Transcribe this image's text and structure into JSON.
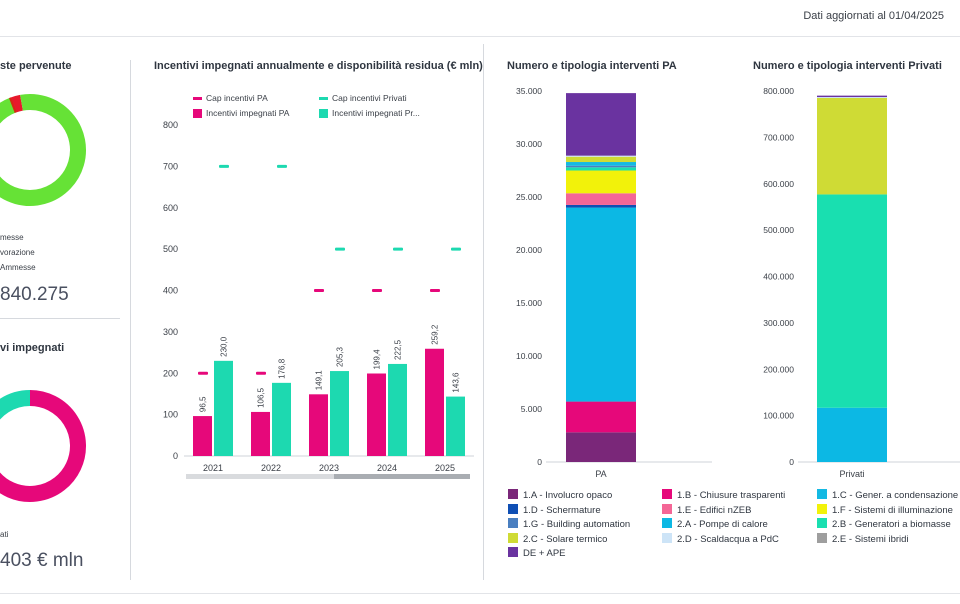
{
  "header": {
    "updated": "Dati aggiornati al 01/04/2025"
  },
  "left_top": {
    "title": "ste pervenute",
    "legend": [
      "messe",
      "vorazione",
      "Ammesse"
    ],
    "total": "840.275",
    "donut": {
      "values": [
        0.03,
        0.97
      ],
      "colors": [
        "#e8192c",
        "#66e236"
      ],
      "accent": "#d42a12"
    }
  },
  "left_bottom": {
    "title": "vi impegnati",
    "legend": [
      "ati"
    ],
    "total": "403 € mln",
    "donut": {
      "values": [
        0.64,
        0.36
      ],
      "colors": [
        "#e6087a",
        "#1dd9b0"
      ]
    }
  },
  "chart_data": [
    {
      "type": "bar",
      "title": "Incentivi impegnati annualmente e disponibilità residua (€ mln)",
      "categories": [
        "2021",
        "2022",
        "2023",
        "2024",
        "2025"
      ],
      "ylim": [
        0,
        800
      ],
      "yticks": [
        0,
        100,
        200,
        300,
        400,
        500,
        600,
        700,
        800
      ],
      "legend_position": "top",
      "series": [
        {
          "name": "Incentivi impegnati PA",
          "kind": "bar",
          "color": "#e6087a",
          "values": [
            96.5,
            106.5,
            149.1,
            199.4,
            259.2
          ],
          "labels": [
            "96,5",
            "106,5",
            "149,1",
            "199,4",
            "259,2"
          ]
        },
        {
          "name": "Incentivi impegnati Pr...",
          "kind": "bar",
          "color": "#1dd9b0",
          "values": [
            230.0,
            176.8,
            205.3,
            222.5,
            143.6
          ],
          "labels": [
            "230,0",
            "176,8",
            "205,3",
            "222,5",
            "143,6"
          ]
        },
        {
          "name": "Cap incentivi PA",
          "kind": "marker",
          "color": "#e6087a",
          "values": [
            200,
            200,
            400,
            400,
            400
          ]
        },
        {
          "name": "Cap incentivi Privati",
          "kind": "marker",
          "color": "#1dd9b0",
          "values": [
            700,
            700,
            500,
            500,
            500
          ]
        }
      ]
    },
    {
      "type": "bar",
      "stacked": true,
      "title": "Numero e tipologia interventi PA",
      "categories": [
        "PA"
      ],
      "ylim": [
        0,
        35000
      ],
      "yticks": [
        0,
        5000,
        10000,
        15000,
        20000,
        25000,
        30000,
        35000
      ],
      "ytick_labels": [
        "0",
        "5.000",
        "10.000",
        "15.000",
        "20.000",
        "25.000",
        "30.000",
        "35.000"
      ],
      "series": [
        {
          "name": "1.A - Involucro opaco",
          "value": 2800
        },
        {
          "name": "1.B - Chiusure trasparenti",
          "value": 2900
        },
        {
          "name": "2.A - Pompe di calore",
          "value": 18300
        },
        {
          "name": "1.D - Schermature",
          "value": 250
        },
        {
          "name": "1.E - Edifici nZEB",
          "value": 1100
        },
        {
          "name": "1.F - Sistemi di illuminazione",
          "value": 2150
        },
        {
          "name": "2.B - Generatori a biomasse",
          "value": 300
        },
        {
          "name": "1.G - Building automation",
          "value": 150
        },
        {
          "name": "1.C - Gener. a condensazione",
          "value": 350
        },
        {
          "name": "2.C - Solare termico",
          "value": 500
        },
        {
          "name": "2.D - Scaldacqua a PdC",
          "value": 100
        },
        {
          "name": "DE + APE",
          "value": 5900
        }
      ]
    },
    {
      "type": "bar",
      "stacked": true,
      "title": "Numero e tipologia interventi Privati",
      "categories": [
        "Privati"
      ],
      "ylim": [
        0,
        800000
      ],
      "yticks": [
        0,
        100000,
        200000,
        300000,
        400000,
        500000,
        600000,
        700000,
        800000
      ],
      "ytick_labels": [
        "0",
        "100.000",
        "200.000",
        "300.000",
        "400.000",
        "500.000",
        "600.000",
        "700.000",
        "800.000"
      ],
      "series": [
        {
          "name": "2.A - Pompe di calore",
          "value": 117000
        },
        {
          "name": "2.B - Generatori a biomasse",
          "value": 460000
        },
        {
          "name": "2.C - Solare termico",
          "value": 208000
        },
        {
          "name": "2.D - Scaldacqua a PdC",
          "value": 2000
        },
        {
          "name": "DE + APE",
          "value": 3000
        }
      ]
    }
  ],
  "types_legend": [
    {
      "name": "1.A - Involucro opaco",
      "color": "#7a2779"
    },
    {
      "name": "1.B - Chiusure trasparenti",
      "color": "#e6087a"
    },
    {
      "name": "1.C - Gener. a condensazione",
      "color": "#14b9e3"
    },
    {
      "name": "1.D - Schermature",
      "color": "#0f4fb4"
    },
    {
      "name": "1.E - Edifici nZEB",
      "color": "#f46696"
    },
    {
      "name": "1.F - Sistemi di illuminazione",
      "color": "#f2f20a"
    },
    {
      "name": "1.G - Building automation",
      "color": "#4a7fc0"
    },
    {
      "name": "2.A - Pompe di calore",
      "color": "#0cb8e4"
    },
    {
      "name": "2.B - Generatori a biomasse",
      "color": "#19dfb0"
    },
    {
      "name": "2.C - Solare termico",
      "color": "#cfdb35"
    },
    {
      "name": "2.D - Scaldacqua a PdC",
      "color": "#cde4f7"
    },
    {
      "name": "2.E - Sistemi ibridi",
      "color": "#9e9e9e"
    },
    {
      "name": "DE + APE",
      "color": "#6a33a0"
    }
  ]
}
